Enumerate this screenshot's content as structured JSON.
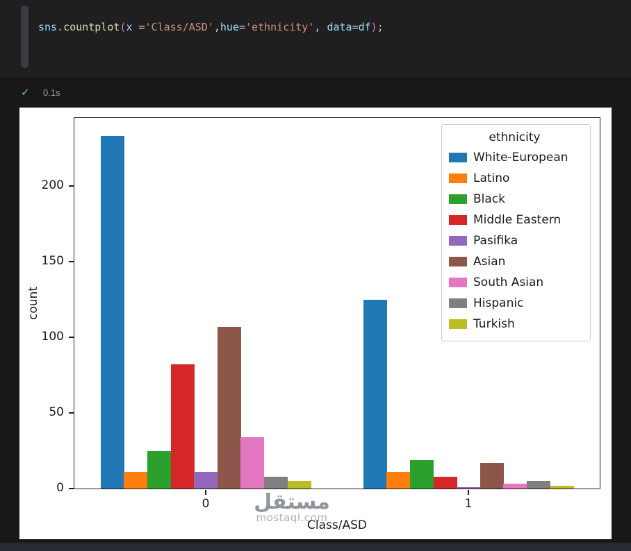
{
  "cell": {
    "code_tokens": [
      {
        "text": "sns",
        "color": "#9cdcfe"
      },
      {
        "text": ".",
        "color": "#cccccc"
      },
      {
        "text": "countplot",
        "color": "#dcdcaa"
      },
      {
        "text": "(",
        "color": "#da70d6"
      },
      {
        "text": "x ",
        "color": "#9cdcfe"
      },
      {
        "text": "=",
        "color": "#d4d4d4"
      },
      {
        "text": "'Class/ASD'",
        "color": "#ce9178"
      },
      {
        "text": ",",
        "color": "#cccccc"
      },
      {
        "text": "hue",
        "color": "#9cdcfe"
      },
      {
        "text": "=",
        "color": "#d4d4d4"
      },
      {
        "text": "'ethnicity'",
        "color": "#ce9178"
      },
      {
        "text": ", ",
        "color": "#cccccc"
      },
      {
        "text": "data",
        "color": "#9cdcfe"
      },
      {
        "text": "=",
        "color": "#d4d4d4"
      },
      {
        "text": "df",
        "color": "#9cdcfe"
      },
      {
        "text": ")",
        "color": "#da70d6"
      },
      {
        "text": ";",
        "color": "#cccccc"
      }
    ],
    "status": {
      "icon": "✓",
      "time": "0.1s"
    }
  },
  "chart_data": {
    "type": "bar",
    "title": "",
    "xlabel": "Class/ASD",
    "ylabel": "count",
    "categories": [
      "0",
      "1"
    ],
    "yticks": [
      0,
      50,
      100,
      150,
      200
    ],
    "ylim": [
      0,
      245
    ],
    "grid": false,
    "legend_title": "ethnicity",
    "legend_position": "upper right",
    "series": [
      {
        "name": "White-European",
        "color": "#1f77b4",
        "values": [
          233,
          125
        ]
      },
      {
        "name": "Latino",
        "color": "#ff7f0e",
        "values": [
          11,
          11
        ]
      },
      {
        "name": "Black",
        "color": "#2ca02c",
        "values": [
          25,
          19
        ]
      },
      {
        "name": "Middle Eastern",
        "color": "#d62728",
        "values": [
          82,
          8
        ]
      },
      {
        "name": "Pasifika",
        "color": "#9467bd",
        "values": [
          11,
          1
        ]
      },
      {
        "name": "Asian",
        "color": "#8c564b",
        "values": [
          107,
          17
        ]
      },
      {
        "name": "South Asian",
        "color": "#e377c2",
        "values": [
          34,
          3
        ]
      },
      {
        "name": "Hispanic",
        "color": "#7f7f7f",
        "values": [
          8,
          5
        ]
      },
      {
        "name": "Turkish",
        "color": "#bcbd22",
        "values": [
          5,
          2
        ]
      }
    ],
    "watermark": {
      "arabic": "مستقل",
      "latin": "mostaql.com"
    }
  }
}
